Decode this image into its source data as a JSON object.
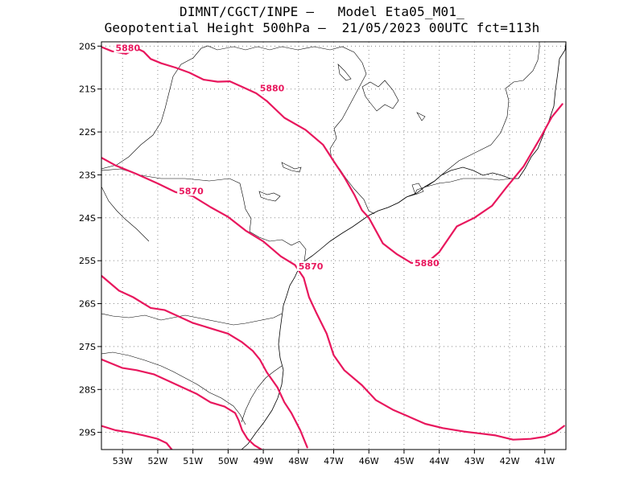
{
  "header": {
    "line1": "DIMNT/CGCT/INPE –   Model Eta05_M01_",
    "line2": "Geopotential Height 500hPa –  21/05/2023 00UTC fct=113h"
  },
  "chart_data": {
    "type": "line",
    "title": "Geopotential Height 500hPa",
    "xlabel": "",
    "ylabel": "",
    "xlim": [
      -53.6,
      -40.4
    ],
    "ylim": [
      -29.4,
      -19.9
    ],
    "grid": true,
    "grid_style": "dotted",
    "x_ticks": [
      -53,
      -52,
      -51,
      -50,
      -49,
      -48,
      -47,
      -46,
      -45,
      -44,
      -43,
      -42,
      -41
    ],
    "x_tick_labels": [
      "53W",
      "52W",
      "51W",
      "50W",
      "49W",
      "48W",
      "47W",
      "46W",
      "45W",
      "44W",
      "43W",
      "42W",
      "41W"
    ],
    "y_ticks": [
      -20,
      -21,
      -22,
      -23,
      -24,
      -25,
      -26,
      -27,
      -28,
      -29
    ],
    "y_tick_labels": [
      "20S",
      "21S",
      "22S",
      "23S",
      "24S",
      "25S",
      "26S",
      "27S",
      "28S",
      "29S"
    ],
    "contour_color": "#e8175d",
    "map_line_color": "#000000",
    "series": [
      {
        "name": "5880",
        "label_at": [
          -53.2,
          -20.12
        ],
        "x": [
          -53.6,
          -53.3,
          -52.9,
          -52.6,
          -52.4,
          -52.2,
          -51.9,
          -51.5,
          -51.1,
          -50.7,
          -50.3,
          -49.95,
          -49.6,
          -49.2,
          -48.9,
          -48.4,
          -47.8,
          -47.3,
          -47.0,
          -46.7,
          -46.4,
          -46.2,
          -46.0,
          -45.6,
          -45.2,
          -44.8,
          -44.4,
          -44.0,
          -43.5,
          -43.0,
          -42.5,
          -42.1,
          -41.6,
          -41.1,
          -40.8,
          -40.6,
          -40.5
        ],
        "y": [
          -20.02,
          -20.12,
          -20.18,
          -20.05,
          -20.13,
          -20.3,
          -20.4,
          -20.5,
          -20.62,
          -20.78,
          -20.83,
          -20.82,
          -20.95,
          -21.1,
          -21.28,
          -21.67,
          -21.95,
          -22.3,
          -22.68,
          -23.05,
          -23.48,
          -23.82,
          -24.0,
          -24.6,
          -24.85,
          -25.05,
          -25.08,
          -24.8,
          -24.2,
          -24.0,
          -23.72,
          -23.3,
          -22.8,
          -22.1,
          -21.65,
          -21.45,
          -21.35
        ]
      },
      {
        "name": "5870",
        "label_at": [
          -48.0,
          -25.2
        ],
        "x": [
          -53.6,
          -53.2,
          -52.6,
          -52.0,
          -51.5,
          -51.0,
          -50.5,
          -50.0,
          -49.5,
          -49.0,
          -48.5,
          -48.1,
          -47.85,
          -47.7,
          -47.5,
          -47.2,
          -47.0,
          -46.7,
          -46.2,
          -45.8,
          -45.3,
          -44.9,
          -44.4,
          -43.9,
          -43.3,
          -42.9,
          -42.4,
          -41.9,
          -41.4,
          -41.0,
          -40.7,
          -40.45
        ],
        "y": [
          -22.6,
          -22.78,
          -22.98,
          -23.2,
          -23.4,
          -23.5,
          -23.75,
          -23.98,
          -24.3,
          -24.55,
          -24.9,
          -25.1,
          -25.4,
          -25.85,
          -26.2,
          -26.7,
          -27.2,
          -27.55,
          -27.9,
          -28.25,
          -28.48,
          -28.62,
          -28.8,
          -28.9,
          -28.98,
          -29.02,
          -29.07,
          -29.17,
          -29.15,
          -29.1,
          -29.0,
          -28.85
        ]
      },
      {
        "name": "",
        "x": [
          -53.6,
          -53.1,
          -52.7,
          -52.2,
          -51.8,
          -51.4,
          -51.0,
          -50.6,
          -50.0,
          -49.6,
          -49.3,
          -49.1,
          -48.9,
          -48.6,
          -48.4,
          -48.2,
          -47.95,
          -47.75
        ],
        "y": [
          -25.35,
          -25.7,
          -25.85,
          -26.1,
          -26.15,
          -26.3,
          -26.45,
          -26.55,
          -26.7,
          -26.9,
          -27.1,
          -27.3,
          -27.6,
          -27.95,
          -28.3,
          -28.55,
          -28.95,
          -29.35
        ]
      },
      {
        "name": "",
        "x": [
          -53.6,
          -53.0,
          -52.6,
          -52.1,
          -51.7,
          -51.3,
          -50.9,
          -50.5,
          -50.1,
          -49.8,
          -49.7,
          -49.6,
          -49.45,
          -49.25,
          -49.05
        ],
        "y": [
          -27.3,
          -27.5,
          -27.55,
          -27.65,
          -27.8,
          -27.95,
          -28.1,
          -28.3,
          -28.4,
          -28.55,
          -28.72,
          -28.95,
          -29.15,
          -29.3,
          -29.4
        ]
      },
      {
        "name": "",
        "x": [
          -53.6,
          -53.2,
          -52.8,
          -52.4,
          -52.0,
          -51.75,
          -51.6
        ],
        "y": [
          -28.85,
          -28.95,
          -29.0,
          -29.07,
          -29.15,
          -29.25,
          -29.4
        ]
      }
    ]
  }
}
